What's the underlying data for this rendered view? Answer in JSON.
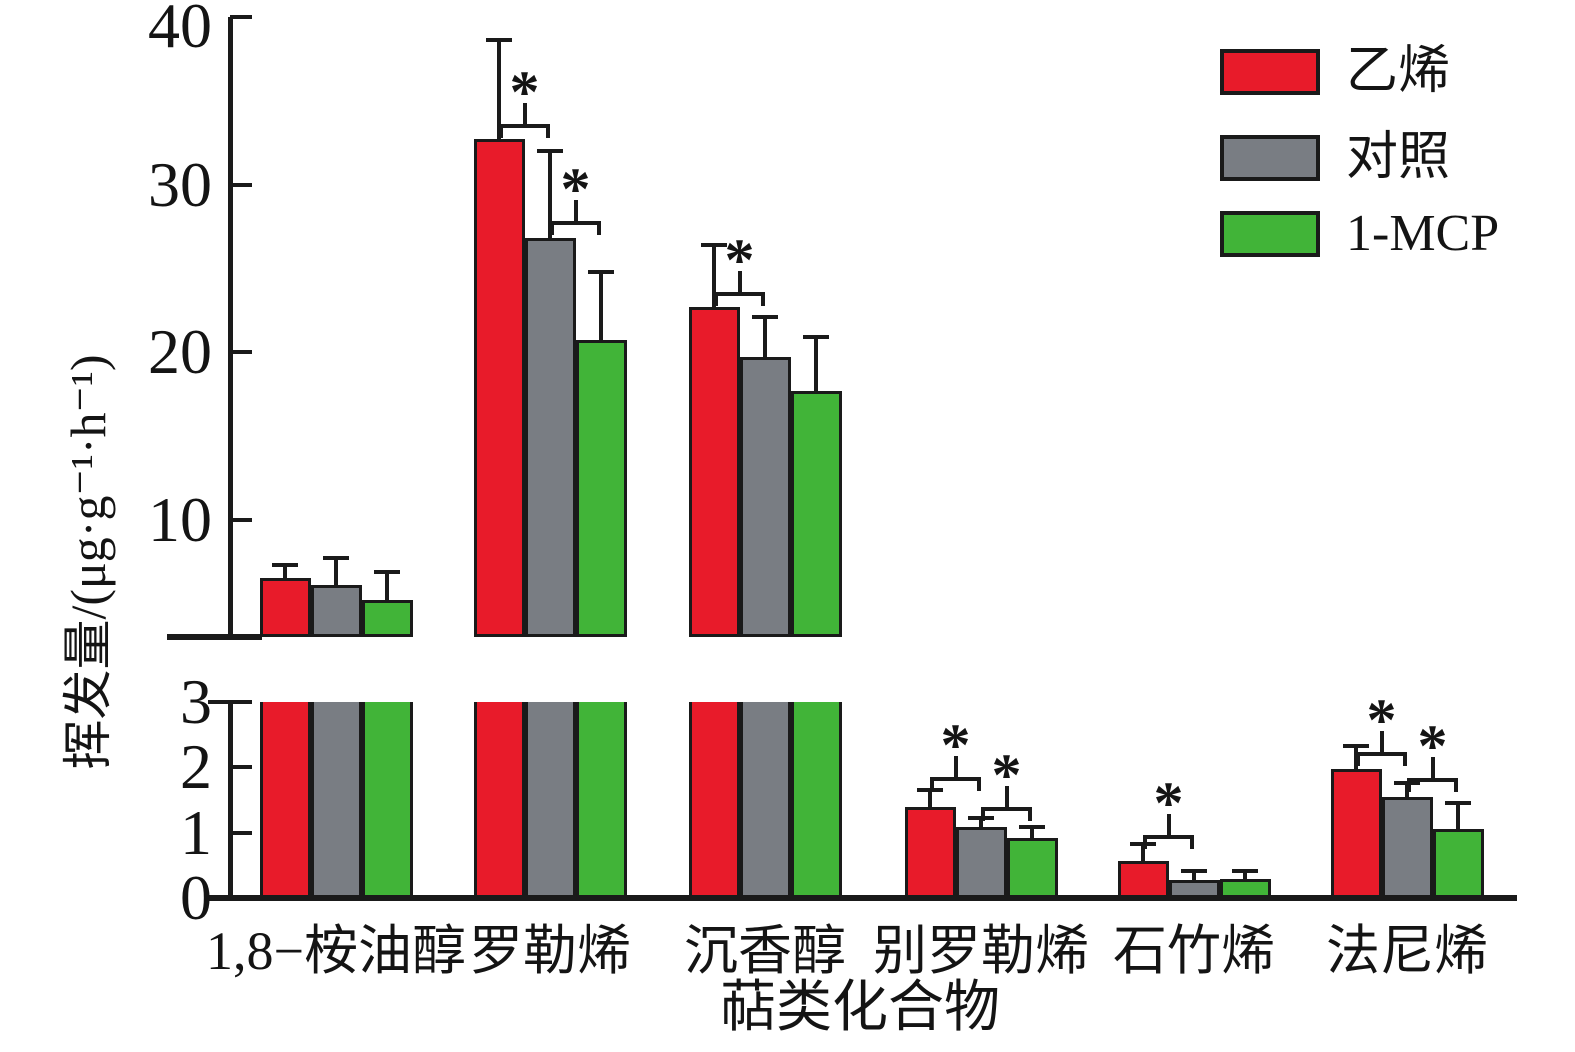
{
  "chart_data": {
    "type": "bar",
    "title": "",
    "ylabel": "挥发量/(μg·g⁻¹·h⁻¹)",
    "xlabel": "萜类化合物",
    "categories": [
      "1,8−桉油醇",
      "罗勒烯",
      "沉香醇",
      "别罗勒烯",
      "石竹烯",
      "法尼烯"
    ],
    "series": [
      {
        "name": "乙烯",
        "color": "#e81b2a",
        "values": [
          6.5,
          32.7,
          22.7,
          1.4,
          0.57,
          1.98
        ],
        "error_up": [
          0.8,
          5.9,
          3.7,
          0.26,
          0.25,
          0.34
        ]
      },
      {
        "name": "对照",
        "color": "#797d83",
        "values": [
          6.1,
          26.8,
          19.7,
          1.09,
          0.27,
          1.55
        ],
        "error_up": [
          1.6,
          5.2,
          2.4,
          0.14,
          0.15,
          0.21
        ]
      },
      {
        "name": "1-MCP",
        "color": "#41b438",
        "values": [
          5.2,
          20.7,
          17.7,
          0.92,
          0.29,
          1.05
        ],
        "error_up": [
          1.7,
          4.1,
          3.2,
          0.17,
          0.13,
          0.4
        ]
      }
    ],
    "axis_break": {
      "upper_range": [
        3,
        40
      ],
      "upper_ticks": [
        10,
        20,
        30,
        40
      ],
      "lower_range": [
        0,
        3
      ],
      "lower_ticks": [
        0,
        1,
        2,
        3
      ]
    },
    "significance": [
      {
        "category": "罗勒烯",
        "pair": [
          "乙烯",
          "对照"
        ],
        "label": "*",
        "y": 33.6
      },
      {
        "category": "罗勒烯",
        "pair": [
          "对照",
          "1-MCP"
        ],
        "label": "*",
        "y": 27.8
      },
      {
        "category": "沉香醇",
        "pair": [
          "乙烯",
          "对照"
        ],
        "label": "*",
        "y": 23.6
      },
      {
        "category": "别罗勒烯",
        "pair": [
          "乙烯",
          "对照"
        ],
        "label": "*",
        "y": 1.85
      },
      {
        "category": "别罗勒烯",
        "pair": [
          "对照",
          "1-MCP"
        ],
        "label": "*",
        "y": 1.4
      },
      {
        "category": "石竹烯",
        "pair": [
          "乙烯",
          "对照"
        ],
        "label": "*",
        "y": 0.97
      },
      {
        "category": "法尼烯",
        "pair": [
          "乙烯",
          "对照"
        ],
        "label": "*",
        "y": 2.24
      },
      {
        "category": "法尼烯",
        "pair": [
          "对照",
          "1-MCP"
        ],
        "label": "*",
        "y": 1.83
      }
    ],
    "legend": {
      "position": "top-right",
      "entries": [
        "乙烯",
        "对照",
        "1-MCP"
      ]
    },
    "grid": false,
    "bar_edge_color": "#1a1a1a"
  }
}
